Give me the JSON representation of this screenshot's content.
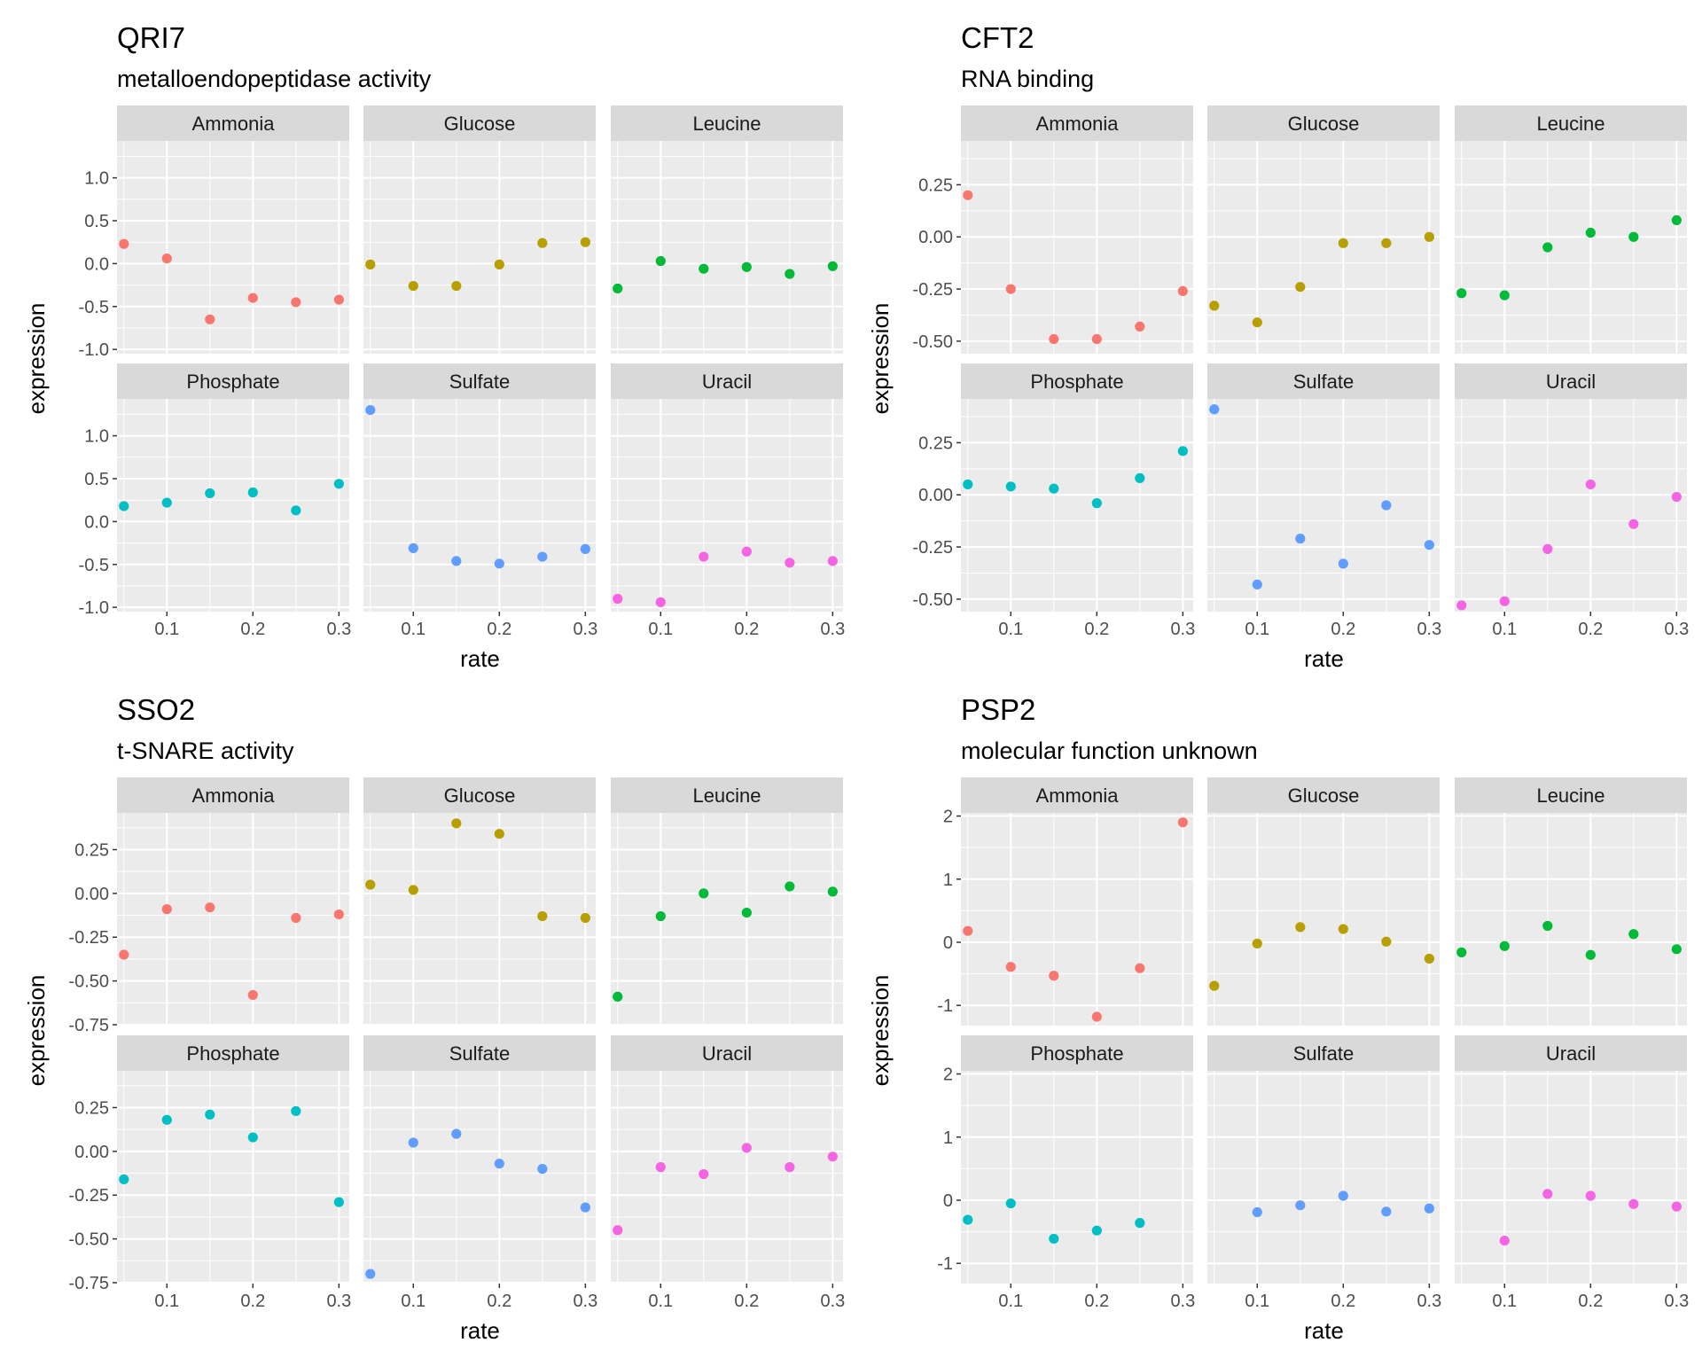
{
  "chart_data": [
    {
      "type": "scatter",
      "title": "QRI7",
      "subtitle": "metalloendopeptidase activity",
      "xlabel": "rate",
      "ylabel": "expression",
      "x": [
        0.05,
        0.1,
        0.15,
        0.2,
        0.25,
        0.3
      ],
      "xticks": [
        0.1,
        0.2,
        0.3
      ],
      "xtick_labels": [
        "0.1",
        "0.2",
        "0.3"
      ],
      "xlim": [
        0.042,
        0.312
      ],
      "ylim": [
        -1.05,
        1.43
      ],
      "yticks": [
        -1.0,
        -0.5,
        0.0,
        0.5,
        1.0
      ],
      "ytick_labels": [
        "-1.0",
        "-0.5",
        "0.0",
        "0.5",
        "1.0"
      ],
      "grid": true,
      "facets": [
        {
          "name": "Ammonia",
          "color": "#F8766D",
          "values": [
            0.23,
            0.06,
            -0.65,
            -0.4,
            -0.45,
            -0.42
          ]
        },
        {
          "name": "Glucose",
          "color": "#B79F00",
          "values": [
            -0.01,
            -0.26,
            -0.26,
            -0.01,
            0.24,
            0.25
          ]
        },
        {
          "name": "Leucine",
          "color": "#00BA38",
          "values": [
            -0.29,
            0.03,
            -0.06,
            -0.04,
            -0.12,
            -0.03
          ]
        },
        {
          "name": "Phosphate",
          "color": "#00BFC4",
          "values": [
            0.18,
            0.22,
            0.33,
            0.34,
            0.13,
            0.44
          ]
        },
        {
          "name": "Sulfate",
          "color": "#619CFF",
          "values": [
            1.3,
            -0.31,
            -0.46,
            -0.49,
            -0.41,
            -0.32
          ]
        },
        {
          "name": "Uracil",
          "color": "#F564E3",
          "values": [
            -0.9,
            -0.94,
            -0.41,
            -0.35,
            -0.48,
            -0.46
          ]
        }
      ]
    },
    {
      "type": "scatter",
      "title": "CFT2",
      "subtitle": "RNA binding",
      "xlabel": "rate",
      "ylabel": "expression",
      "x": [
        0.05,
        0.1,
        0.15,
        0.2,
        0.25,
        0.3
      ],
      "xticks": [
        0.1,
        0.2,
        0.3
      ],
      "xtick_labels": [
        "0.1",
        "0.2",
        "0.3"
      ],
      "xlim": [
        0.042,
        0.312
      ],
      "ylim": [
        -0.56,
        0.46
      ],
      "yticks": [
        -0.5,
        -0.25,
        0.0,
        0.25
      ],
      "ytick_labels": [
        "-0.50",
        "-0.25",
        "0.00",
        "0.25"
      ],
      "grid": true,
      "facets": [
        {
          "name": "Ammonia",
          "color": "#F8766D",
          "values": [
            0.2,
            -0.25,
            -0.49,
            -0.49,
            -0.43,
            -0.26
          ]
        },
        {
          "name": "Glucose",
          "color": "#B79F00",
          "values": [
            -0.33,
            -0.41,
            -0.24,
            -0.03,
            -0.03,
            0.0
          ]
        },
        {
          "name": "Leucine",
          "color": "#00BA38",
          "values": [
            -0.27,
            -0.28,
            -0.05,
            0.02,
            0.0,
            0.08
          ]
        },
        {
          "name": "Phosphate",
          "color": "#00BFC4",
          "values": [
            0.05,
            0.04,
            0.03,
            -0.04,
            0.08,
            0.21
          ]
        },
        {
          "name": "Sulfate",
          "color": "#619CFF",
          "values": [
            0.41,
            -0.43,
            -0.21,
            -0.33,
            -0.05,
            -0.24
          ]
        },
        {
          "name": "Uracil",
          "color": "#F564E3",
          "values": [
            -0.53,
            -0.51,
            -0.26,
            0.05,
            -0.14,
            -0.01
          ]
        }
      ]
    },
    {
      "type": "scatter",
      "title": "SSO2",
      "subtitle": "t-SNARE activity",
      "xlabel": "rate",
      "ylabel": "expression",
      "x": [
        0.05,
        0.1,
        0.15,
        0.2,
        0.25,
        0.3
      ],
      "xticks": [
        0.1,
        0.2,
        0.3
      ],
      "xtick_labels": [
        "0.1",
        "0.2",
        "0.3"
      ],
      "xlim": [
        0.042,
        0.312
      ],
      "ylim": [
        -0.755,
        0.46
      ],
      "yticks": [
        -0.75,
        -0.5,
        -0.25,
        0.0,
        0.25
      ],
      "ytick_labels": [
        "-0.75",
        "-0.50",
        "-0.25",
        "0.00",
        "0.25"
      ],
      "grid": true,
      "facets": [
        {
          "name": "Ammonia",
          "color": "#F8766D",
          "values": [
            -0.35,
            -0.09,
            -0.08,
            -0.58,
            -0.14,
            -0.12
          ]
        },
        {
          "name": "Glucose",
          "color": "#B79F00",
          "values": [
            0.05,
            0.02,
            0.4,
            0.34,
            -0.13,
            -0.14
          ]
        },
        {
          "name": "Leucine",
          "color": "#00BA38",
          "values": [
            -0.59,
            -0.13,
            0.0,
            -0.11,
            0.04,
            0.01
          ]
        },
        {
          "name": "Phosphate",
          "color": "#00BFC4",
          "values": [
            -0.16,
            0.18,
            0.21,
            0.08,
            0.23,
            -0.29
          ]
        },
        {
          "name": "Sulfate",
          "color": "#619CFF",
          "values": [
            -0.7,
            0.05,
            0.1,
            -0.07,
            -0.1,
            -0.32
          ]
        },
        {
          "name": "Uracil",
          "color": "#F564E3",
          "values": [
            -0.45,
            -0.09,
            -0.13,
            0.02,
            -0.09,
            -0.03
          ]
        }
      ]
    },
    {
      "type": "scatter",
      "title": "PSP2",
      "subtitle": "molecular function unknown",
      "xlabel": "rate",
      "ylabel": "expression",
      "x": [
        0.05,
        0.1,
        0.15,
        0.2,
        0.25,
        0.3
      ],
      "xticks": [
        0.1,
        0.2,
        0.3
      ],
      "xtick_labels": [
        "0.1",
        "0.2",
        "0.3"
      ],
      "xlim": [
        0.042,
        0.312
      ],
      "ylim": [
        -1.32,
        2.05
      ],
      "yticks": [
        -1,
        0,
        1,
        2
      ],
      "ytick_labels": [
        "-1",
        "0",
        "1",
        "2"
      ],
      "grid": true,
      "facets": [
        {
          "name": "Ammonia",
          "color": "#F8766D",
          "values": [
            0.18,
            -0.39,
            -0.53,
            -1.18,
            -0.41,
            1.9
          ]
        },
        {
          "name": "Glucose",
          "color": "#B79F00",
          "values": [
            -0.69,
            -0.02,
            0.24,
            0.21,
            0.01,
            -0.26
          ]
        },
        {
          "name": "Leucine",
          "color": "#00BA38",
          "values": [
            -0.16,
            -0.06,
            0.26,
            -0.2,
            0.13,
            -0.11
          ]
        },
        {
          "name": "Phosphate",
          "color": "#00BFC4",
          "values": [
            -0.31,
            -0.05,
            -0.61,
            -0.48,
            -0.36,
            null
          ]
        },
        {
          "name": "Sulfate",
          "color": "#619CFF",
          "values": [
            null,
            -0.19,
            -0.08,
            0.07,
            -0.18,
            -0.13
          ]
        },
        {
          "name": "Uracil",
          "color": "#F564E3",
          "values": [
            null,
            -0.64,
            0.1,
            0.07,
            -0.06,
            -0.1
          ]
        }
      ]
    }
  ]
}
